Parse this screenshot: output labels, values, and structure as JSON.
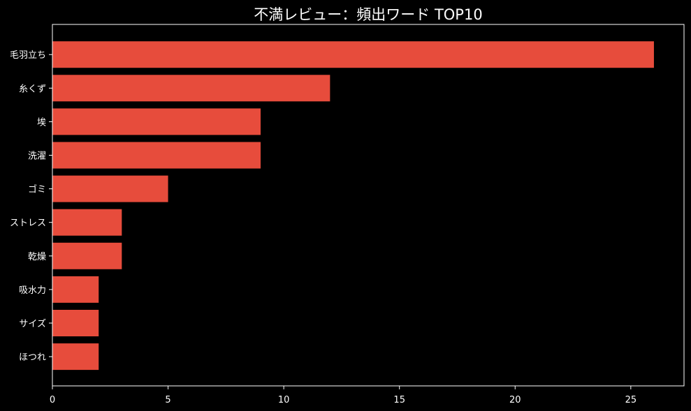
{
  "chart_data": {
    "type": "bar",
    "orientation": "horizontal",
    "title": "不満レビュー：頻出ワード TOP10",
    "xlabel": "",
    "ylabel": "",
    "categories": [
      "毛羽立ち",
      "糸くず",
      "埃",
      "洗濯",
      "ゴミ",
      "ストレス",
      "乾燥",
      "吸水力",
      "サイズ",
      "ほつれ"
    ],
    "values": [
      26,
      12,
      9,
      9,
      5,
      3,
      3,
      2,
      2,
      2
    ],
    "xlim": [
      0,
      27.3
    ],
    "xticks": [
      0,
      5,
      10,
      15,
      20,
      25
    ],
    "grid": false,
    "colors": {
      "background": "#000000",
      "bar": "#e74c3c",
      "axis": "#ffffff",
      "text": "#ffffff"
    }
  }
}
